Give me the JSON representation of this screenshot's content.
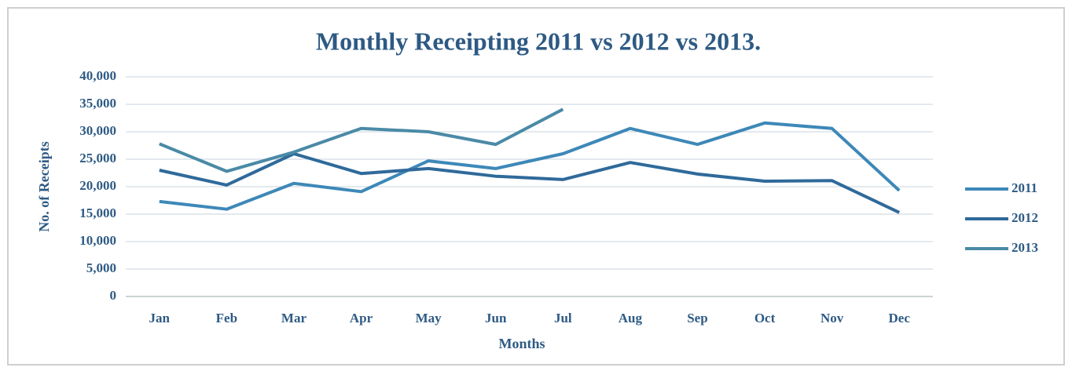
{
  "chart_data": {
    "type": "line",
    "title": "Monthly Receipting 2011 vs 2012 vs 2013.",
    "xlabel": "Months",
    "ylabel": "No. of Receipts",
    "categories": [
      "Jan",
      "Feb",
      "Mar",
      "Apr",
      "May",
      "Jun",
      "Jul",
      "Aug",
      "Sep",
      "Oct",
      "Nov",
      "Dec"
    ],
    "series": [
      {
        "name": "2011",
        "color": "#3d88b8",
        "values": [
          17300,
          15900,
          20600,
          19100,
          24700,
          23300,
          26000,
          30600,
          27700,
          31600,
          30600,
          19300
        ]
      },
      {
        "name": "2012",
        "color": "#2f6a9a",
        "values": [
          23000,
          20300,
          26000,
          22400,
          23300,
          21900,
          21300,
          24400,
          22300,
          21000,
          21100,
          15300
        ]
      },
      {
        "name": "2013",
        "color": "#4a8aa6",
        "values": [
          27800,
          22800,
          26300,
          30600,
          30000,
          27700,
          34100,
          null,
          null,
          null,
          null,
          null
        ]
      }
    ],
    "ylim": [
      0,
      40000
    ],
    "yticks": [
      0,
      {
        "value": 5000,
        "label": "5,000"
      },
      {
        "value": 10000,
        "label": "10,000"
      },
      {
        "value": 15000,
        "label": "15,000"
      },
      {
        "value": 20000,
        "label": "20,000"
      },
      {
        "value": 25000,
        "label": "25,000"
      },
      {
        "value": 30000,
        "label": "30,000"
      },
      {
        "value": 35000,
        "label": "35,000"
      },
      {
        "value": 40000,
        "label": "40,000"
      }
    ],
    "grid": true,
    "legend": "right"
  }
}
